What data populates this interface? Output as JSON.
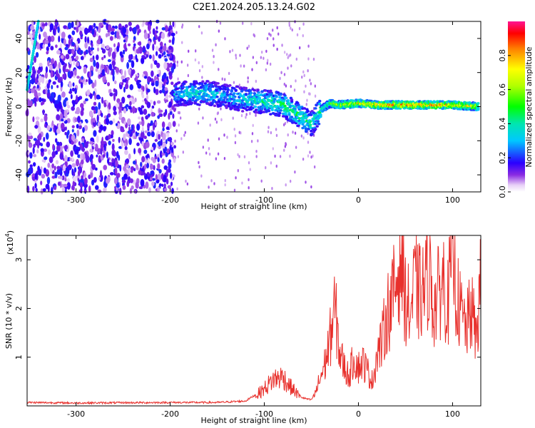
{
  "title": "C2E1.2024.205.13.24.G02",
  "colors": {
    "snr_line": "#e8302c",
    "axis": "#000000"
  },
  "chart_data": [
    {
      "type": "heatmap",
      "xlabel": "Height of straight line (km)",
      "ylabel": "Frequency (Hz)",
      "xlim": [
        -352,
        130
      ],
      "ylim": [
        -50,
        50
      ],
      "xticks": [
        -300,
        -200,
        -100,
        0,
        100
      ],
      "yticks": [
        -40,
        -20,
        0,
        20,
        40
      ],
      "colorbar": {
        "label": "Normalized spectral amplitude",
        "range": [
          0,
          1
        ],
        "ticks": [
          "0.0",
          "0.2",
          "0.4",
          "0.6",
          "0.8"
        ],
        "tick_values": [
          0.0,
          0.2,
          0.4,
          0.6,
          0.8
        ],
        "colormap": "rainbow"
      },
      "ridge": {
        "x": [
          -195,
          -180,
          -160,
          -140,
          -120,
          -100,
          -80,
          -60,
          -50,
          -40,
          -30,
          -20,
          0,
          20,
          50,
          80,
          100,
          128
        ],
        "freq": [
          7,
          8,
          8,
          6,
          4,
          3,
          1,
          -6,
          -10,
          -2,
          2,
          1,
          2,
          1,
          1,
          1,
          1,
          0
        ],
        "amplitude": [
          0.35,
          0.4,
          0.4,
          0.35,
          0.4,
          0.45,
          0.5,
          0.5,
          0.45,
          0.5,
          0.6,
          0.7,
          0.8,
          0.85,
          0.9,
          0.9,
          0.85,
          0.75
        ]
      },
      "noise_region_x": [
        -352,
        -195
      ],
      "noise_amplitude": 0.12,
      "early_streak": {
        "x": [
          -352,
          -340
        ],
        "freq": [
          10,
          50
        ],
        "amplitude": 0.3
      }
    },
    {
      "type": "line",
      "xlabel": "Height of straight line (km)",
      "ylabel": "SNR (10 * v/v)",
      "y_multiplier": "(x10",
      "y_multiplier_exp": "4",
      "xlim": [
        -352,
        130
      ],
      "ylim": [
        0,
        3.5
      ],
      "xticks": [
        -300,
        -200,
        -100,
        0,
        100
      ],
      "yticks": [
        1,
        2,
        3
      ],
      "series": [
        {
          "x": [
            -352,
            -300,
            -200,
            -150,
            -120,
            -110,
            -100,
            -90,
            -80,
            -75,
            -70,
            -60,
            -50,
            -45,
            -40,
            -35,
            -30,
            -25,
            -22,
            -20,
            -15,
            -10,
            -5,
            0,
            5,
            10,
            15,
            20,
            25,
            30,
            35,
            40,
            45,
            50,
            55,
            60,
            65,
            70,
            75,
            80,
            85,
            90,
            95,
            100,
            105,
            110,
            115,
            120,
            125,
            130
          ],
          "y": [
            0.05,
            0.04,
            0.05,
            0.05,
            0.08,
            0.2,
            0.35,
            0.55,
            0.6,
            0.45,
            0.35,
            0.15,
            0.1,
            0.3,
            0.6,
            0.9,
            1.4,
            2.0,
            1.5,
            1.1,
            0.8,
            0.6,
            1.0,
            0.8,
            0.9,
            0.7,
            0.5,
            1.1,
            1.3,
            1.9,
            2.1,
            2.5,
            3.2,
            2.2,
            1.9,
            2.5,
            2.3,
            2.4,
            2.9,
            2.0,
            2.3,
            2.6,
            2.1,
            3.3,
            2.2,
            1.8,
            1.6,
            2.0,
            1.4,
            2.5
          ]
        }
      ]
    }
  ]
}
